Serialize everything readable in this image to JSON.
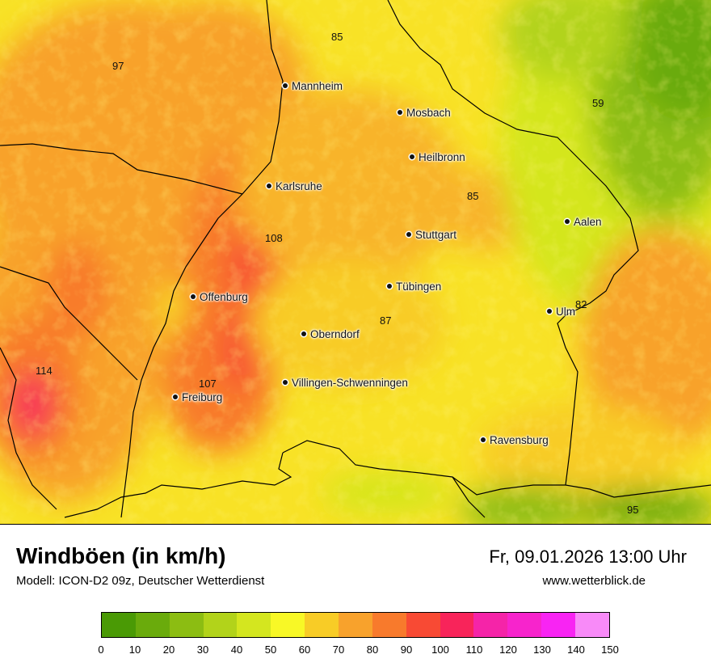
{
  "title": "Windböen (in km/h)",
  "subtitle": "Modell: ICON-D2 09z, Deutscher Wetterdienst",
  "datetime": "Fr, 09.01.2026 13:00 Uhr",
  "website": "www.wetterblick.de",
  "cities": [
    {
      "name": "Mannheim"
    },
    {
      "name": "Mosbach"
    },
    {
      "name": "Heilbronn"
    },
    {
      "name": "Karlsruhe"
    },
    {
      "name": "Stuttgart"
    },
    {
      "name": "Aalen"
    },
    {
      "name": "Tübingen"
    },
    {
      "name": "Offenburg"
    },
    {
      "name": "Ulm"
    },
    {
      "name": "Oberndorf"
    },
    {
      "name": "Villingen-Schwenningen"
    },
    {
      "name": "Freiburg"
    },
    {
      "name": "Ravensburg"
    }
  ],
  "values": [
    "85",
    "97",
    "59",
    "85",
    "108",
    "82",
    "87",
    "114",
    "107",
    "95"
  ],
  "legend": {
    "ticks": [
      "0",
      "10",
      "20",
      "30",
      "40",
      "50",
      "60",
      "70",
      "80",
      "90",
      "100",
      "110",
      "120",
      "130",
      "140",
      "150"
    ],
    "colors": [
      "#4a9a05",
      "#6aab0c",
      "#8cbd12",
      "#b2d31a",
      "#d4e61f",
      "#f8f826",
      "#f8cc26",
      "#f8a22c",
      "#f87a2c",
      "#f84a34",
      "#f8245a",
      "#f524a8",
      "#f724cc",
      "#f824f3",
      "#f88af8"
    ]
  }
}
